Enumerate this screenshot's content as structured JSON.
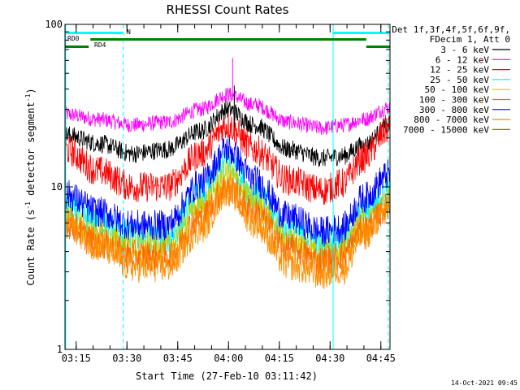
{
  "chart_data": {
    "type": "line",
    "title": "RHESSI Count Rates",
    "xlabel": "Start Time (27-Feb-10 03:11:42)",
    "ylabel_main": "Count Rate (s",
    "ylabel_sup1": "-1",
    "ylabel_mid": " detector segment",
    "ylabel_sup2": "-1",
    "ylabel_end": ")",
    "yscale": "log",
    "ylim": [
      1,
      100
    ],
    "xlim_minutes": [
      0,
      96
    ],
    "y_ticks": [
      {
        "value": 1,
        "label": "1"
      },
      {
        "value": 10,
        "label": "10"
      },
      {
        "value": 100,
        "label": "100"
      }
    ],
    "x_ticks": [
      {
        "minute": 3.3,
        "label": "03:15"
      },
      {
        "minute": 18.3,
        "label": "03:30"
      },
      {
        "minute": 33.3,
        "label": "03:45"
      },
      {
        "minute": 48.3,
        "label": "04:00"
      },
      {
        "minute": 63.3,
        "label": "04:15"
      },
      {
        "minute": 78.3,
        "label": "04:30"
      },
      {
        "minute": 93.3,
        "label": "04:45"
      }
    ],
    "legend_header": [
      "Det 1f,3f,4f,5f,6f,9f,",
      "FDecim 1, Att 0"
    ],
    "series": [
      {
        "name": "3 - 6 keV",
        "color": "#000000",
        "points": [
          [
            0,
            21
          ],
          [
            10,
            18.5
          ],
          [
            20,
            16
          ],
          [
            30,
            17
          ],
          [
            40,
            22
          ],
          [
            48,
            30
          ],
          [
            56,
            24
          ],
          [
            66,
            17
          ],
          [
            76,
            15
          ],
          [
            82,
            15.5
          ],
          [
            88,
            18
          ],
          [
            96,
            24
          ]
        ]
      },
      {
        "name": "6 - 12 keV",
        "color": "#ff00ff",
        "points": [
          [
            0,
            28
          ],
          [
            10,
            26
          ],
          [
            20,
            24
          ],
          [
            30,
            25
          ],
          [
            40,
            30
          ],
          [
            48,
            37
          ],
          [
            56,
            32
          ],
          [
            66,
            25
          ],
          [
            76,
            23
          ],
          [
            82,
            24
          ],
          [
            88,
            26
          ],
          [
            96,
            31
          ]
        ]
      },
      {
        "name": "12 - 25 keV",
        "color": "#ff0000",
        "points": [
          [
            0,
            17
          ],
          [
            10,
            12.5
          ],
          [
            20,
            10
          ],
          [
            30,
            10
          ],
          [
            40,
            16
          ],
          [
            48,
            24
          ],
          [
            56,
            17
          ],
          [
            66,
            11
          ],
          [
            76,
            9.5
          ],
          [
            82,
            10.5
          ],
          [
            88,
            15
          ],
          [
            96,
            23
          ]
        ]
      },
      {
        "name": "25 - 50 keV",
        "color": "#00ffff",
        "points": [
          [
            0,
            7.5
          ],
          [
            10,
            6
          ],
          [
            20,
            5
          ],
          [
            30,
            4.8
          ],
          [
            40,
            9
          ],
          [
            48,
            14
          ],
          [
            56,
            9
          ],
          [
            66,
            5.5
          ],
          [
            76,
            4.5
          ],
          [
            82,
            4.8
          ],
          [
            88,
            7
          ],
          [
            96,
            10
          ]
        ]
      },
      {
        "name": "50 - 100 keV",
        "color": "#cccc00",
        "points": [
          [
            0,
            6.5
          ],
          [
            10,
            5
          ],
          [
            20,
            4.3
          ],
          [
            30,
            4.2
          ],
          [
            40,
            7.5
          ],
          [
            48,
            12
          ],
          [
            56,
            8
          ],
          [
            66,
            4.7
          ],
          [
            76,
            4
          ],
          [
            82,
            4.2
          ],
          [
            88,
            6
          ],
          [
            96,
            8
          ]
        ]
      },
      {
        "name": "100 - 300 keV",
        "color": "#ff6600",
        "points": [
          [
            0,
            6
          ],
          [
            10,
            4.5
          ],
          [
            20,
            3.8
          ],
          [
            30,
            3.7
          ],
          [
            40,
            6.5
          ],
          [
            48,
            10
          ],
          [
            56,
            7
          ],
          [
            66,
            4.2
          ],
          [
            76,
            3.5
          ],
          [
            82,
            3.8
          ],
          [
            88,
            5.5
          ],
          [
            96,
            7.5
          ]
        ]
      },
      {
        "name": "300 - 800 keV",
        "color": "#0000ff",
        "points": [
          [
            0,
            9
          ],
          [
            10,
            7
          ],
          [
            20,
            5.8
          ],
          [
            30,
            5.8
          ],
          [
            40,
            10.5
          ],
          [
            48,
            17
          ],
          [
            56,
            11
          ],
          [
            66,
            6.5
          ],
          [
            76,
            5.3
          ],
          [
            82,
            5.6
          ],
          [
            88,
            8.5
          ],
          [
            96,
            12
          ]
        ]
      },
      {
        "name": "800 - 7000 keV",
        "color": "#ff8c00",
        "points": [
          [
            0,
            6
          ],
          [
            10,
            4.3
          ],
          [
            20,
            3.2
          ],
          [
            30,
            3.2
          ],
          [
            40,
            5.5
          ],
          [
            48,
            9.5
          ],
          [
            56,
            6
          ],
          [
            66,
            3.3
          ],
          [
            76,
            2.9
          ],
          [
            82,
            3.1
          ],
          [
            88,
            5
          ],
          [
            96,
            7.5
          ]
        ]
      },
      {
        "name": "7000 - 15000 keV",
        "color": "#808000",
        "points": []
      }
    ],
    "bar_labels": [
      "RD0",
      "RD4",
      "N"
    ],
    "attenuator_bars": [
      {
        "label_ref": "RD0",
        "start_min": 0,
        "end_min": 17,
        "color": "#00ffff"
      },
      {
        "label_ref": "RD4",
        "start_min": 79,
        "end_min": 96,
        "color": "#00ffff"
      }
    ],
    "flag_bars": [
      {
        "start_min": 0,
        "end_min": 7,
        "color": "#008000",
        "row": 2
      },
      {
        "start_min": 7.5,
        "end_min": 89,
        "color": "#008000",
        "row": 1
      },
      {
        "start_min": 89,
        "end_min": 96,
        "color": "#008000",
        "row": 2
      }
    ],
    "vertical_markers": [
      {
        "minute": 0.2,
        "style": "solid"
      },
      {
        "minute": 17.2,
        "style": "dashed"
      },
      {
        "minute": 79.2,
        "style": "solid"
      },
      {
        "minute": 95.5,
        "style": "dashed"
      }
    ],
    "spikes": [
      {
        "minute": 49.5,
        "value": 62,
        "color": "#ff00ff"
      },
      {
        "minute": 50,
        "value": 42,
        "color": "#000000"
      }
    ],
    "marker_color": "#00ffff"
  },
  "footer_timestamp": "14-Oct-2021 09:45"
}
